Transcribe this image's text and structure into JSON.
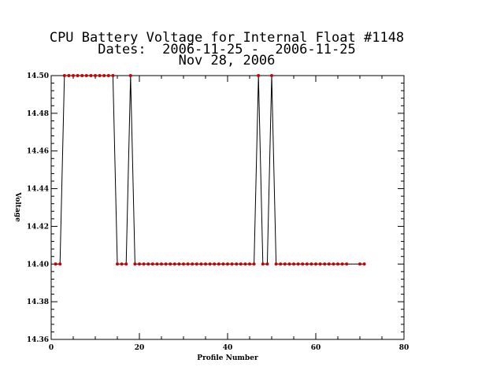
{
  "chart_data": {
    "type": "line",
    "title": "CPU Battery Voltage for Internal Float #1148",
    "subtitle_dates": "Dates:  2006-11-25 -  2006-11-25",
    "subtitle_date": "Nov 28, 2006",
    "xlabel": "Profile Number",
    "ylabel": "Voltage",
    "xlim": [
      0,
      80
    ],
    "ylim": [
      14.36,
      14.5
    ],
    "x_ticks": [
      0,
      20,
      40,
      60,
      80
    ],
    "y_ticks": [
      14.36,
      14.38,
      14.4,
      14.42,
      14.44,
      14.46,
      14.48,
      14.5
    ],
    "x_tick_labels": [
      "0",
      "20",
      "40",
      "60",
      "80"
    ],
    "y_tick_labels": [
      "14.36",
      "14.38",
      "14.40",
      "14.42",
      "14.44",
      "14.46",
      "14.48",
      "14.50"
    ],
    "grid": false,
    "line_color": "#000000",
    "marker_color": "#cc0000",
    "series": [
      {
        "x": [
          1,
          2,
          3,
          4,
          5,
          6,
          7,
          8,
          9,
          10,
          11,
          12,
          13,
          14,
          15,
          16,
          17,
          18,
          19,
          20,
          21,
          22,
          23,
          24,
          25,
          26,
          27,
          28,
          29,
          30,
          31,
          32,
          33,
          34,
          35,
          36,
          37,
          38,
          39,
          40,
          41,
          42,
          43,
          44,
          45,
          46,
          47,
          48,
          49,
          50,
          51,
          52,
          53,
          54,
          55,
          56,
          57,
          58,
          59,
          60,
          61,
          62,
          63,
          64,
          65,
          66,
          67,
          70,
          71
        ],
        "values": [
          14.4,
          14.4,
          14.5,
          14.5,
          14.5,
          14.5,
          14.5,
          14.5,
          14.5,
          14.5,
          14.5,
          14.5,
          14.5,
          14.5,
          14.4,
          14.4,
          14.4,
          14.5,
          14.4,
          14.4,
          14.4,
          14.4,
          14.4,
          14.4,
          14.4,
          14.4,
          14.4,
          14.4,
          14.4,
          14.4,
          14.4,
          14.4,
          14.4,
          14.4,
          14.4,
          14.4,
          14.4,
          14.4,
          14.4,
          14.4,
          14.4,
          14.4,
          14.4,
          14.4,
          14.4,
          14.4,
          14.5,
          14.4,
          14.4,
          14.5,
          14.4,
          14.4,
          14.4,
          14.4,
          14.4,
          14.4,
          14.4,
          14.4,
          14.4,
          14.4,
          14.4,
          14.4,
          14.4,
          14.4,
          14.4,
          14.4,
          14.4,
          14.4,
          14.4
        ]
      }
    ]
  }
}
